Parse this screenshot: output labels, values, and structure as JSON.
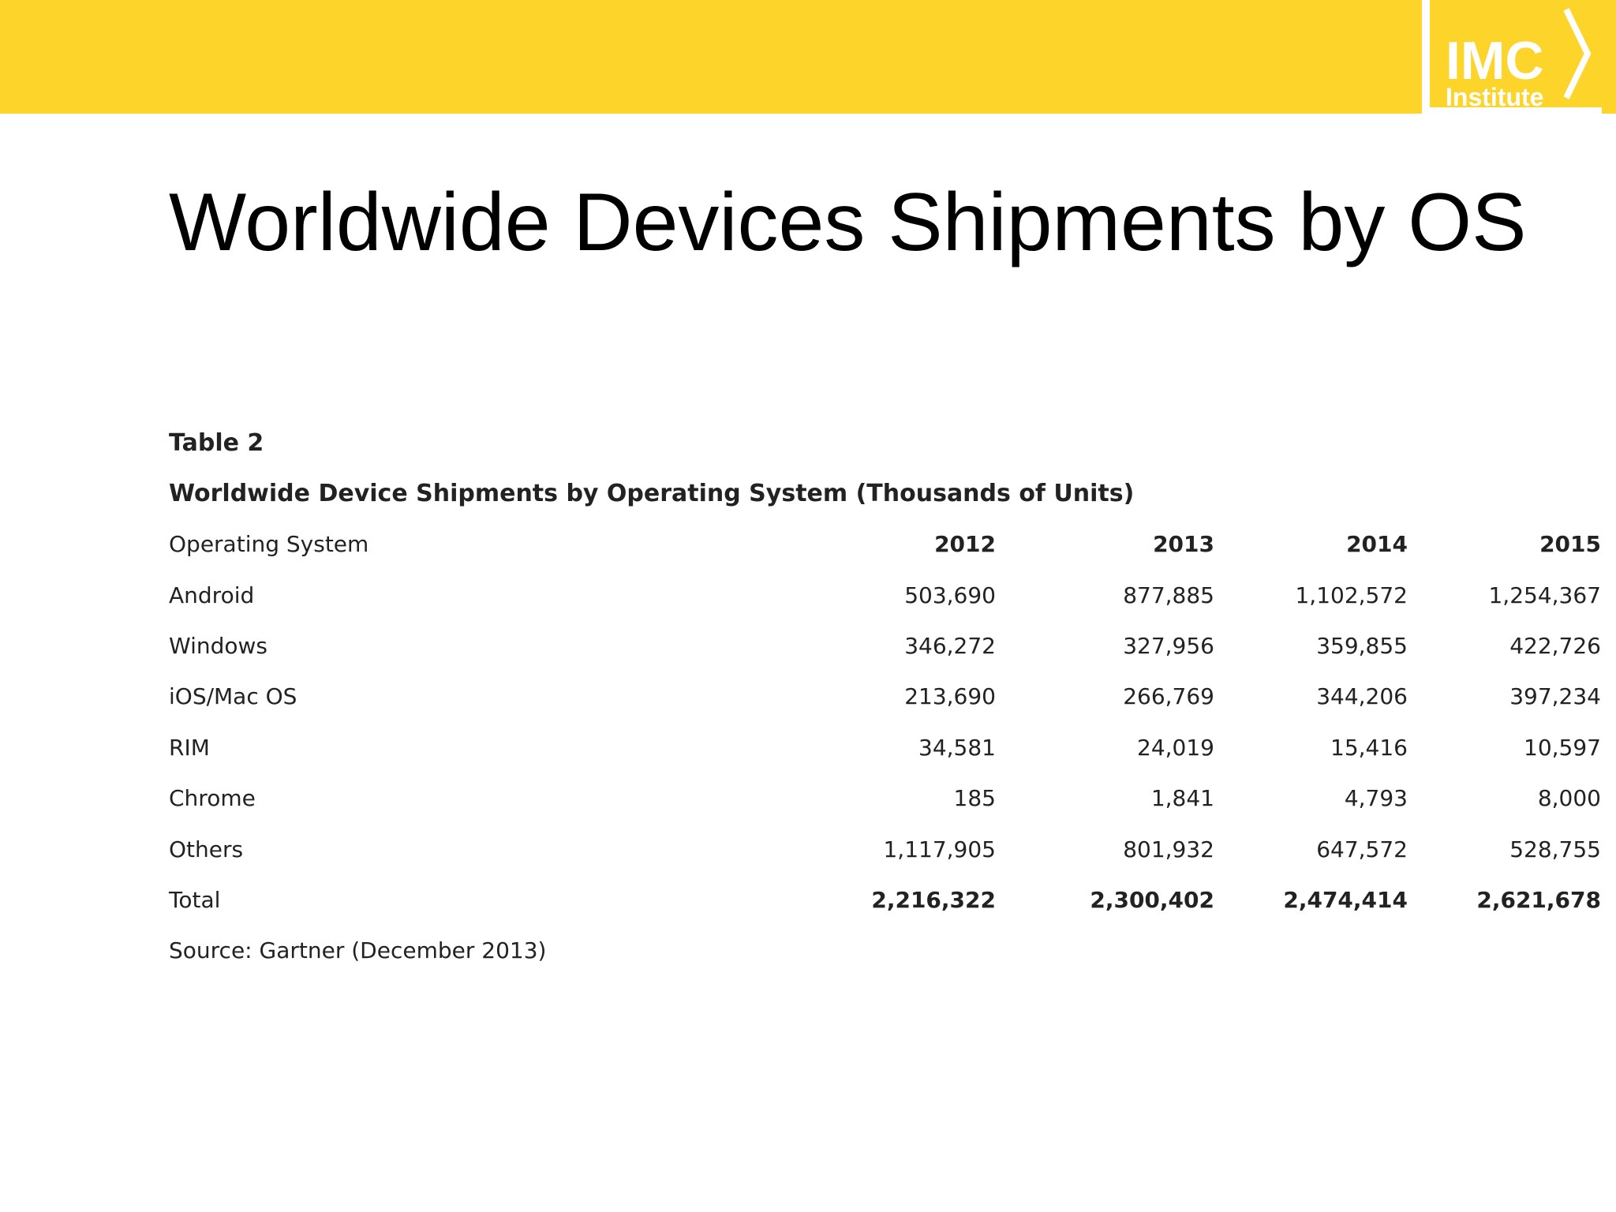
{
  "header": {
    "bar_color": "#FDD42A",
    "logo": {
      "line1": "IMC",
      "line2": "Institute"
    }
  },
  "slide": {
    "title": "Worldwide Devices Shipments by OS"
  },
  "table": {
    "label": "Table 2",
    "caption": "Worldwide Device Shipments by Operating System (Thousands of Units)",
    "columns": [
      "Operating System",
      "2012",
      "2013",
      "2014",
      "2015"
    ],
    "rows": [
      {
        "os": "Android",
        "values": [
          "503,690",
          "877,885",
          "1,102,572",
          "1,254,367"
        ]
      },
      {
        "os": "Windows",
        "values": [
          "346,272",
          "327,956",
          "359,855",
          "422,726"
        ]
      },
      {
        "os": "iOS/Mac OS",
        "values": [
          "213,690",
          "266,769",
          "344,206",
          "397,234"
        ]
      },
      {
        "os": "RIM",
        "values": [
          "34,581",
          "24,019",
          "15,416",
          "10,597"
        ]
      },
      {
        "os": "Chrome",
        "values": [
          "185",
          "1,841",
          "4,793",
          "8,000"
        ]
      },
      {
        "os": "Others",
        "values": [
          "1,117,905",
          "801,932",
          "647,572",
          "528,755"
        ]
      },
      {
        "os": "Total",
        "values": [
          "2,216,322",
          "2,300,402",
          "2,474,414",
          "2,621,678"
        ]
      }
    ],
    "source": "Source: Gartner (December 2013)"
  }
}
